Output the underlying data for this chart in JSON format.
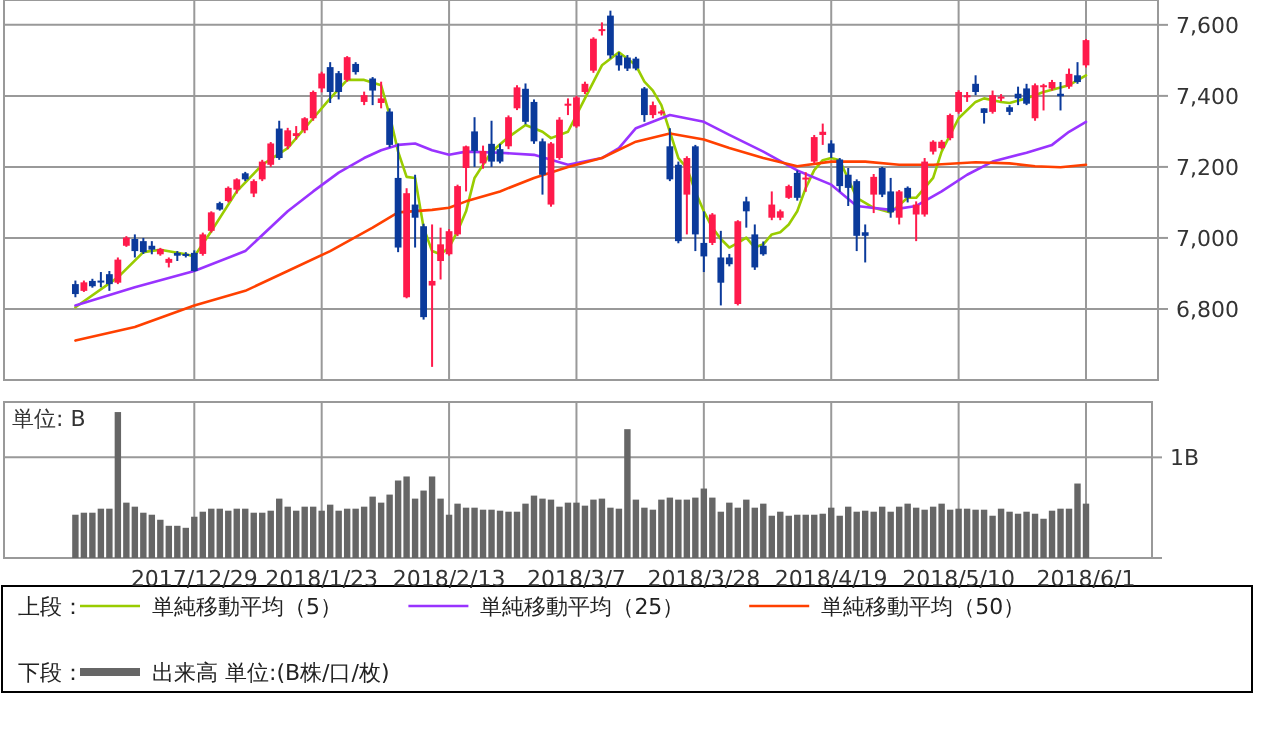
{
  "chart_data": [
    {
      "type": "candlestick",
      "legend": "bottom",
      "legend_title": "上段：",
      "grid": true,
      "tick_labels": "y",
      "ylim": [
        6600,
        7670
      ],
      "yticks": [
        {
          "value": 6800,
          "label": "6,800"
        },
        {
          "value": 7000,
          "label": "7,000"
        },
        {
          "value": 7200,
          "label": "7,200"
        },
        {
          "value": 7400,
          "label": "7,400"
        },
        {
          "value": 7600,
          "label": "7,600"
        }
      ],
      "categories": [
        null,
        null,
        null,
        null,
        null,
        null,
        null,
        null,
        null,
        null,
        null,
        null,
        null,
        null,
        "2017/12/29",
        null,
        null,
        null,
        null,
        null,
        null,
        null,
        null,
        null,
        null,
        null,
        null,
        null,
        null,
        "2018/1/23",
        null,
        null,
        null,
        null,
        null,
        null,
        null,
        null,
        null,
        null,
        null,
        null,
        null,
        null,
        "2018/2/13",
        null,
        null,
        null,
        null,
        null,
        null,
        null,
        null,
        null,
        null,
        null,
        null,
        null,
        null,
        "2018/3/7",
        null,
        null,
        null,
        null,
        null,
        null,
        null,
        null,
        null,
        null,
        null,
        null,
        null,
        null,
        "2018/3/28",
        null,
        null,
        null,
        null,
        null,
        null,
        null,
        null,
        null,
        null,
        null,
        null,
        null,
        null,
        "2018/4/19",
        null,
        null,
        null,
        null,
        null,
        null,
        null,
        null,
        null,
        null,
        null,
        null,
        null,
        null,
        "2018/5/10",
        null,
        null,
        null,
        null,
        null,
        null,
        null,
        null,
        null,
        null,
        null,
        null,
        null,
        null,
        "2018/6/1"
      ],
      "ohlc": [
        [
          6870,
          6880,
          6833,
          6842
        ],
        [
          6851,
          6880,
          6848,
          6875
        ],
        [
          6879,
          6885,
          6860,
          6864
        ],
        [
          6880,
          6904,
          6861,
          6875
        ],
        [
          6898,
          6907,
          6851,
          6870
        ],
        [
          6874,
          6945,
          6870,
          6939
        ],
        [
          6978,
          7005,
          6975,
          7001
        ],
        [
          6997,
          7010,
          6945,
          6963
        ],
        [
          6991,
          7000,
          6955,
          6960
        ],
        [
          6978,
          6991,
          6954,
          6967
        ],
        [
          6954,
          6972,
          6950,
          6969
        ],
        [
          6930,
          6945,
          6917,
          6941
        ],
        [
          6958,
          6963,
          6935,
          6950
        ],
        [
          6955,
          6960,
          6945,
          6953
        ],
        [
          6958,
          6965,
          6905,
          6907
        ],
        [
          6955,
          7015,
          6950,
          7010
        ],
        [
          7020,
          7075,
          7015,
          7072
        ],
        [
          7098,
          7102,
          7077,
          7080
        ],
        [
          7104,
          7145,
          7100,
          7141
        ],
        [
          7136,
          7168,
          7125,
          7165
        ],
        [
          7182,
          7186,
          7160,
          7165
        ],
        [
          7125,
          7165,
          7115,
          7160
        ],
        [
          7165,
          7220,
          7160,
          7215
        ],
        [
          7206,
          7270,
          7200,
          7266
        ],
        [
          7308,
          7330,
          7220,
          7225
        ],
        [
          7258,
          7310,
          7250,
          7303
        ],
        [
          7287,
          7315,
          7277,
          7295
        ],
        [
          7303,
          7340,
          7295,
          7337
        ],
        [
          7337,
          7415,
          7330,
          7411
        ],
        [
          7421,
          7468,
          7410,
          7463
        ],
        [
          7481,
          7495,
          7380,
          7411
        ],
        [
          7464,
          7470,
          7390,
          7411
        ],
        [
          7445,
          7512,
          7440,
          7509
        ],
        [
          7490,
          7495,
          7460,
          7467
        ],
        [
          7383,
          7412,
          7374,
          7402
        ],
        [
          7449,
          7453,
          7374,
          7415
        ],
        [
          7380,
          7440,
          7365,
          7393
        ],
        [
          7356,
          7365,
          7255,
          7262
        ],
        [
          7169,
          7266,
          6960,
          6973
        ],
        [
          6833,
          7140,
          6830,
          7126
        ],
        [
          7094,
          7178,
          6973,
          7057
        ],
        [
          7033,
          7040,
          6770,
          6777
        ],
        [
          6866,
          7038,
          6637,
          6879
        ],
        [
          6935,
          7029,
          6883,
          6982
        ],
        [
          6954,
          7025,
          6950,
          7019
        ],
        [
          7010,
          7150,
          7005,
          7146
        ],
        [
          7197,
          7260,
          7131,
          7258
        ],
        [
          7300,
          7340,
          7200,
          7245
        ],
        [
          7210,
          7260,
          7195,
          7245
        ],
        [
          7265,
          7330,
          7200,
          7215
        ],
        [
          7250,
          7265,
          7210,
          7215
        ],
        [
          7258,
          7345,
          7250,
          7340
        ],
        [
          7365,
          7430,
          7360,
          7424
        ],
        [
          7420,
          7435,
          7320,
          7327
        ],
        [
          7383,
          7390,
          7265,
          7272
        ],
        [
          7272,
          7280,
          7122,
          7178
        ],
        [
          7094,
          7270,
          7088,
          7266
        ],
        [
          7225,
          7340,
          7220,
          7333
        ],
        [
          7374,
          7393,
          7346,
          7378
        ],
        [
          7314,
          7400,
          7310,
          7396
        ],
        [
          7411,
          7440,
          7405,
          7434
        ],
        [
          7471,
          7565,
          7465,
          7561
        ],
        [
          7583,
          7607,
          7570,
          7588
        ],
        [
          7626,
          7640,
          7505,
          7514
        ],
        [
          7514,
          7523,
          7471,
          7486
        ],
        [
          7508,
          7515,
          7470,
          7477
        ],
        [
          7505,
          7510,
          7472,
          7477
        ],
        [
          7421,
          7425,
          7327,
          7346
        ],
        [
          7346,
          7384,
          7337,
          7374
        ],
        [
          7352,
          7360,
          7345,
          7356
        ],
        [
          7258,
          7309,
          7160,
          7165
        ],
        [
          7206,
          7215,
          6985,
          6991
        ],
        [
          7122,
          7230,
          7010,
          7225
        ],
        [
          7258,
          7262,
          6963,
          7010
        ],
        [
          6986,
          7075,
          6904,
          6948
        ],
        [
          6986,
          7070,
          6980,
          7066
        ],
        [
          6945,
          7020,
          6810,
          6874
        ],
        [
          6945,
          6955,
          6920,
          6926
        ],
        [
          6814,
          7050,
          6810,
          7047
        ],
        [
          7103,
          7116,
          7029,
          7075
        ],
        [
          7010,
          7038,
          6910,
          6917
        ],
        [
          6978,
          6990,
          6950,
          6954
        ],
        [
          7057,
          7131,
          7050,
          7094
        ],
        [
          7057,
          7080,
          7050,
          7075
        ],
        [
          7113,
          7150,
          7110,
          7146
        ],
        [
          7183,
          7190,
          7105,
          7113
        ],
        [
          7165,
          7185,
          7130,
          7170
        ],
        [
          7215,
          7290,
          7210,
          7284
        ],
        [
          7290,
          7322,
          7262,
          7299
        ],
        [
          7266,
          7275,
          7225,
          7240
        ],
        [
          7221,
          7225,
          7130,
          7146
        ],
        [
          7178,
          7197,
          7090,
          7141
        ],
        [
          7160,
          7165,
          6963,
          7006
        ],
        [
          7016,
          7038,
          6931,
          7006
        ],
        [
          7122,
          7180,
          7070,
          7172
        ],
        [
          7197,
          7200,
          7115,
          7122
        ],
        [
          7131,
          7169,
          7057,
          7072
        ],
        [
          7057,
          7135,
          7038,
          7131
        ],
        [
          7141,
          7145,
          7100,
          7113
        ],
        [
          7066,
          7103,
          6991,
          7094
        ],
        [
          7066,
          7225,
          7060,
          7215
        ],
        [
          7243,
          7275,
          7235,
          7271
        ],
        [
          7253,
          7276,
          7249,
          7271
        ],
        [
          7281,
          7350,
          7275,
          7346
        ],
        [
          7355,
          7416,
          7350,
          7411
        ],
        [
          7396,
          7411,
          7383,
          7402
        ],
        [
          7434,
          7458,
          7402,
          7411
        ],
        [
          7365,
          7365,
          7322,
          7352
        ],
        [
          7355,
          7415,
          7350,
          7402
        ],
        [
          7393,
          7405,
          7385,
          7398
        ],
        [
          7368,
          7374,
          7346,
          7355
        ],
        [
          7406,
          7426,
          7374,
          7393
        ],
        [
          7421,
          7434,
          7374,
          7378
        ],
        [
          7337,
          7435,
          7330,
          7430
        ],
        [
          7425,
          7434,
          7359,
          7430
        ],
        [
          7421,
          7445,
          7415,
          7439
        ],
        [
          7406,
          7439,
          7359,
          7399
        ],
        [
          7426,
          7477,
          7420,
          7462
        ],
        [
          7458,
          7495,
          7434,
          7439
        ],
        [
          7486,
          7560,
          7480,
          7557
        ]
      ],
      "colors": [
        "#0b3a9b",
        "#ff1a4b",
        "#0b3a9b",
        "#0b3a9b",
        "#0b3a9b",
        "#ff1a4b",
        "#ff1a4b",
        "#0b3a9b",
        "#0b3a9b",
        "#0b3a9b",
        "#ff1a4b",
        "#ff1a4b",
        "#0b3a9b",
        "#0b3a9b",
        "#0b3a9b",
        "#ff1a4b",
        "#ff1a4b",
        "#0b3a9b",
        "#ff1a4b",
        "#ff1a4b",
        "#0b3a9b",
        "#ff1a4b",
        "#ff1a4b",
        "#ff1a4b",
        "#0b3a9b",
        "#ff1a4b",
        "#ff1a4b",
        "#ff1a4b",
        "#ff1a4b",
        "#ff1a4b",
        "#0b3a9b",
        "#0b3a9b",
        "#ff1a4b",
        "#0b3a9b",
        "#ff1a4b",
        "#0b3a9b",
        "#ff1a4b",
        "#0b3a9b",
        "#0b3a9b",
        "#ff1a4b",
        "#0b3a9b",
        "#0b3a9b",
        "#ff1a4b",
        "#ff1a4b",
        "#ff1a4b",
        "#ff1a4b",
        "#ff1a4b",
        "#0b3a9b",
        "#ff1a4b",
        "#0b3a9b",
        "#0b3a9b",
        "#ff1a4b",
        "#ff1a4b",
        "#0b3a9b",
        "#0b3a9b",
        "#0b3a9b",
        "#ff1a4b",
        "#ff1a4b",
        "#ff1a4b",
        "#ff1a4b",
        "#ff1a4b",
        "#ff1a4b",
        "#ff1a4b",
        "#0b3a9b",
        "#0b3a9b",
        "#0b3a9b",
        "#0b3a9b",
        "#0b3a9b",
        "#ff1a4b",
        "#ff1a4b",
        "#0b3a9b",
        "#0b3a9b",
        "#ff1a4b",
        "#0b3a9b",
        "#0b3a9b",
        "#ff1a4b",
        "#0b3a9b",
        "#0b3a9b",
        "#ff1a4b",
        "#0b3a9b",
        "#0b3a9b",
        "#0b3a9b",
        "#ff1a4b",
        "#ff1a4b",
        "#ff1a4b",
        "#0b3a9b",
        "#ff1a4b",
        "#ff1a4b",
        "#ff1a4b",
        "#0b3a9b",
        "#0b3a9b",
        "#0b3a9b",
        "#0b3a9b",
        "#0b3a9b",
        "#ff1a4b",
        "#0b3a9b",
        "#0b3a9b",
        "#ff1a4b",
        "#0b3a9b",
        "#ff1a4b",
        "#ff1a4b",
        "#ff1a4b",
        "#ff1a4b",
        "#ff1a4b",
        "#ff1a4b",
        "#ff1a4b",
        "#0b3a9b",
        "#0b3a9b",
        "#ff1a4b",
        "#ff1a4b",
        "#0b3a9b",
        "#0b3a9b",
        "#0b3a9b",
        "#ff1a4b",
        "#ff1a4b",
        "#ff1a4b",
        "#0b3a9b",
        "#ff1a4b",
        "#0b3a9b",
        "#ff1a4b"
      ],
      "series": [
        {
          "type": "line",
          "name": "単純移動平均（5）",
          "color": "#99cc00",
          "values": [
            6805,
            null,
            null,
            null,
            null,
            6889,
            null,
            null,
            6960,
            null,
            6967,
            null,
            null,
            6954,
            6948,
            null,
            7019,
            null,
            null,
            7131,
            null,
            null,
            7206,
            null,
            null,
            7253,
            null,
            null,
            7337,
            null,
            7393,
            null,
            7445,
            null,
            7445,
            null,
            7430,
            7346,
            7243,
            7172,
            7169,
            7029,
            6963,
            6954,
            6973,
            7019,
            7075,
            7169,
            null,
            7243,
            null,
            7284,
            null,
            7318,
            null,
            7299,
            7281,
            null,
            7299,
            null,
            7393,
            null,
            7486,
            null,
            7523,
            null,
            7486,
            7440,
            7415,
            7374,
            7299,
            7225,
            7197,
            7131,
            7075,
            7029,
            6997,
            6973,
            6986,
            7001,
            6973,
            6982,
            7010,
            7016,
            7038,
            7075,
            7141,
            7191,
            7219,
            7225,
            7219,
            null,
            7113,
            null,
            7085,
            null,
            7072,
            null,
            7113,
            7113,
            null,
            7169,
            7243,
            null,
            7337,
            null,
            7383,
            7393,
            null,
            7383,
            7380,
            null,
            7393,
            null,
            7411,
            null,
            null,
            7430,
            null,
            7458
          ]
        },
        {
          "type": "line",
          "name": "単純移動平均（25）",
          "color": "#9933ff",
          "values": [
            6810,
            null,
            null,
            null,
            null,
            null,
            null,
            6861,
            null,
            null,
            null,
            null,
            null,
            null,
            6907,
            null,
            null,
            null,
            null,
            null,
            6963,
            null,
            null,
            null,
            null,
            7075,
            null,
            null,
            7131,
            null,
            null,
            7184,
            null,
            null,
            7225,
            null,
            7247,
            null,
            7262,
            null,
            7266,
            null,
            7247,
            null,
            7234,
            null,
            7243,
            null,
            null,
            null,
            7240,
            null,
            null,
            null,
            7234,
            null,
            null,
            null,
            7206,
            null,
            null,
            null,
            7225,
            null,
            7253,
            null,
            7309,
            null,
            null,
            null,
            7346,
            null,
            null,
            null,
            7327,
            null,
            null,
            7290,
            null,
            null,
            null,
            7243,
            null,
            null,
            null,
            7190,
            null,
            null,
            null,
            7150,
            null,
            null,
            7090,
            null,
            null,
            null,
            7079,
            null,
            null,
            7090,
            null,
            null,
            7131,
            null,
            null,
            7178,
            null,
            null,
            7215,
            null,
            null,
            null,
            7240,
            null,
            null,
            7262,
            null,
            7299,
            null,
            7327
          ]
        },
        {
          "type": "line",
          "name": "単純移動平均（50）",
          "color": "#ff4000",
          "values": [
            6711,
            null,
            null,
            null,
            null,
            null,
            null,
            6749,
            null,
            null,
            null,
            null,
            null,
            null,
            6810,
            null,
            null,
            null,
            null,
            null,
            6851,
            null,
            null,
            null,
            null,
            6907,
            null,
            null,
            null,
            null,
            6963,
            null,
            null,
            null,
            null,
            7029,
            null,
            null,
            7072,
            null,
            null,
            null,
            7079,
            null,
            7085,
            null,
            7103,
            null,
            null,
            null,
            7131,
            null,
            null,
            null,
            7169,
            null,
            null,
            null,
            7200,
            null,
            null,
            null,
            7225,
            null,
            null,
            null,
            7271,
            null,
            null,
            null,
            7294,
            null,
            null,
            null,
            7277,
            null,
            null,
            7253,
            null,
            null,
            null,
            7225,
            null,
            null,
            null,
            7202,
            null,
            null,
            null,
            7215,
            null,
            null,
            null,
            7215,
            null,
            null,
            null,
            7206,
            null,
            null,
            null,
            7206,
            null,
            null,
            null,
            null,
            7213,
            null,
            null,
            null,
            7210,
            null,
            null,
            7202,
            null,
            null,
            7199,
            null,
            null,
            7206
          ]
        }
      ]
    },
    {
      "type": "bar",
      "legend": "bottom",
      "legend_title": "下段：",
      "grid": true,
      "ylabel": "単位: B",
      "ylim": [
        0,
        1.55
      ],
      "yticks": [
        {
          "value": 0,
          "label": null
        },
        {
          "value": 1,
          "label": "1B"
        }
      ],
      "categories": [
        null,
        null,
        null,
        null,
        null,
        null,
        null,
        null,
        null,
        null,
        null,
        null,
        null,
        null,
        "2017/12/29",
        null,
        null,
        null,
        null,
        null,
        null,
        null,
        null,
        null,
        null,
        null,
        null,
        null,
        null,
        "2018/1/23",
        null,
        null,
        null,
        null,
        null,
        null,
        null,
        null,
        null,
        null,
        null,
        null,
        null,
        null,
        "2018/2/13",
        null,
        null,
        null,
        null,
        null,
        null,
        null,
        null,
        null,
        null,
        null,
        null,
        null,
        null,
        "2018/3/7",
        null,
        null,
        null,
        null,
        null,
        null,
        null,
        null,
        null,
        null,
        null,
        null,
        null,
        null,
        "2018/3/28",
        null,
        null,
        null,
        null,
        null,
        null,
        null,
        null,
        null,
        null,
        null,
        null,
        null,
        null,
        "2018/4/19",
        null,
        null,
        null,
        null,
        null,
        null,
        null,
        null,
        null,
        null,
        null,
        null,
        null,
        null,
        "2018/5/10",
        null,
        null,
        null,
        null,
        null,
        null,
        null,
        null,
        null,
        null,
        null,
        null,
        null,
        null,
        "2018/6/1"
      ],
      "series": [
        {
          "name": "出来高 単位:(B株/口/枚)",
          "color": "#666666",
          "values": [
            0.43,
            0.45,
            0.45,
            0.49,
            0.49,
            1.45,
            0.55,
            0.51,
            0.45,
            0.43,
            0.38,
            0.32,
            0.32,
            0.3,
            0.41,
            0.46,
            0.49,
            0.49,
            0.47,
            0.49,
            0.49,
            0.45,
            0.45,
            0.47,
            0.59,
            0.51,
            0.47,
            0.51,
            0.51,
            0.47,
            0.53,
            0.47,
            0.49,
            0.49,
            0.51,
            0.61,
            0.55,
            0.63,
            0.77,
            0.81,
            0.59,
            0.67,
            0.81,
            0.59,
            0.43,
            0.54,
            0.5,
            0.5,
            0.48,
            0.48,
            0.47,
            0.46,
            0.46,
            0.54,
            0.62,
            0.59,
            0.58,
            0.51,
            0.55,
            0.55,
            0.52,
            0.58,
            0.59,
            0.5,
            0.49,
            1.28,
            0.58,
            0.5,
            0.48,
            0.58,
            0.6,
            0.58,
            0.58,
            0.6,
            0.69,
            0.6,
            0.46,
            0.55,
            0.5,
            0.58,
            0.5,
            0.54,
            0.42,
            0.46,
            0.42,
            0.43,
            0.43,
            0.43,
            0.44,
            0.5,
            0.42,
            0.51,
            0.46,
            0.47,
            0.46,
            0.51,
            0.46,
            0.51,
            0.54,
            0.5,
            0.48,
            0.51,
            0.54,
            0.48,
            0.49,
            0.49,
            0.48,
            0.48,
            0.42,
            0.49,
            0.46,
            0.44,
            0.46,
            0.44,
            0.39,
            0.47,
            0.49,
            0.49,
            0.74,
            0.54
          ]
        }
      ]
    }
  ]
}
